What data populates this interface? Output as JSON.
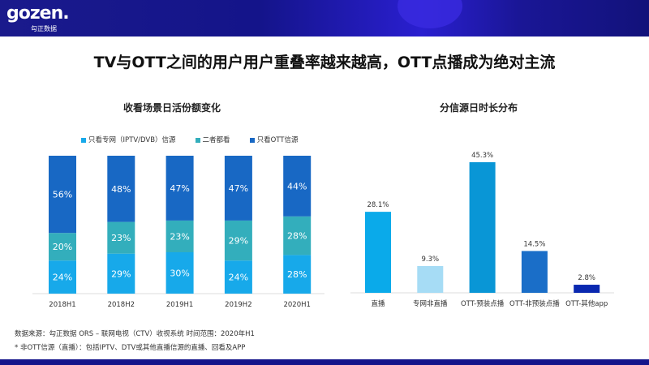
{
  "brand": {
    "logo": "gozen.",
    "logo_sub": "勾正数据"
  },
  "title": "TV与OTT之间的用户用户重叠率越来越高，OTT点播成为绝对主流",
  "chart_data": [
    {
      "type": "bar",
      "stacked": true,
      "title": "收看场景日活份额变化",
      "categories": [
        "2018H1",
        "2018H2",
        "2019H1",
        "2019H2",
        "2020H1"
      ],
      "series": [
        {
          "name": "只看专网（IPTV/DVB）信源",
          "color": "#17a9ea",
          "values": [
            24,
            29,
            30,
            24,
            28
          ]
        },
        {
          "name": "二者都看",
          "color": "#33aebc",
          "values": [
            20,
            23,
            23,
            29,
            28
          ]
        },
        {
          "name": "只看OTT信源",
          "color": "#1868c4",
          "values": [
            56,
            48,
            47,
            47,
            44
          ]
        }
      ],
      "ylim": [
        0,
        100
      ],
      "legend": "top"
    },
    {
      "type": "bar",
      "title": "分信源日时长分布",
      "categories": [
        "直播",
        "专网非直播",
        "OTT-预装点播",
        "OTT-非预装点播",
        "OTT-其他app"
      ],
      "values": [
        28.1,
        9.3,
        45.3,
        14.5,
        2.8
      ],
      "labels": [
        "28.1%",
        "9.3%",
        "45.3%",
        "14.5%",
        "2.8%"
      ],
      "colors": [
        "#0aaaea",
        "#a6dcf5",
        "#0996d6",
        "#1a6ec8",
        "#0a28b0"
      ],
      "ylim": [
        0,
        45.3
      ]
    }
  ],
  "notes": [
    "数据来源：勾正数据 ORS – 联网电视（CTV）收视系统 时间范围：2020年H1",
    "* 非OTT信源（直播）：包括IPTV、DTV或其他直播信源的直播、回看及APP"
  ]
}
